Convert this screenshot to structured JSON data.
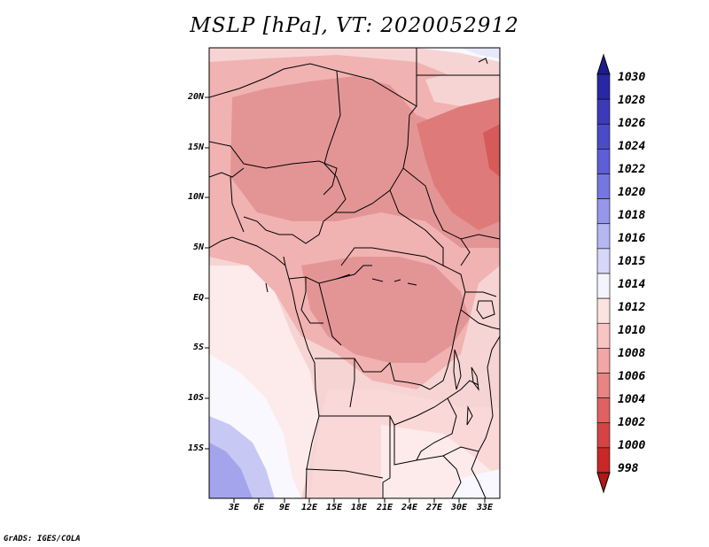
{
  "title": "MSLP [hPa], VT: 2020052912",
  "credit": "GrADS: IGES/COLA",
  "lat_labels": [
    "20N",
    "15N",
    "10N",
    "5N",
    "EQ",
    "5S",
    "10S",
    "15S"
  ],
  "lon_labels": [
    "3E",
    "6E",
    "9E",
    "12E",
    "15E",
    "18E",
    "21E",
    "24E",
    "27E",
    "30E",
    "33E"
  ],
  "colorbar": {
    "levels": [
      "1030",
      "1028",
      "1026",
      "1024",
      "1022",
      "1020",
      "1018",
      "1016",
      "1015",
      "1014",
      "1012",
      "1010",
      "1008",
      "1006",
      "1004",
      "1002",
      "1000",
      "998"
    ],
    "colors": [
      "#1e1c8c",
      "#2a27a4",
      "#3c3ab8",
      "#4b4bc8",
      "#5e5ed6",
      "#7676e0",
      "#9696ea",
      "#b6b6f2",
      "#d6d6f8",
      "#f4f4fe",
      "#fde2e2",
      "#f9c4c4",
      "#f3a6a6",
      "#e88484",
      "#de6262",
      "#d44444",
      "#c82828",
      "#b01818"
    ]
  },
  "colors": {
    "bg_low": "#f6d4d4",
    "bg_mid": "#f1b2b2",
    "bg_dark": "#e08c8c",
    "bg_red": "#d96464",
    "ocean_light": "#fdeaea",
    "ocean_white": "#f8f8fe",
    "ocean_blue": "#b6b6f2",
    "ocean_deep": "#9c9cea"
  }
}
